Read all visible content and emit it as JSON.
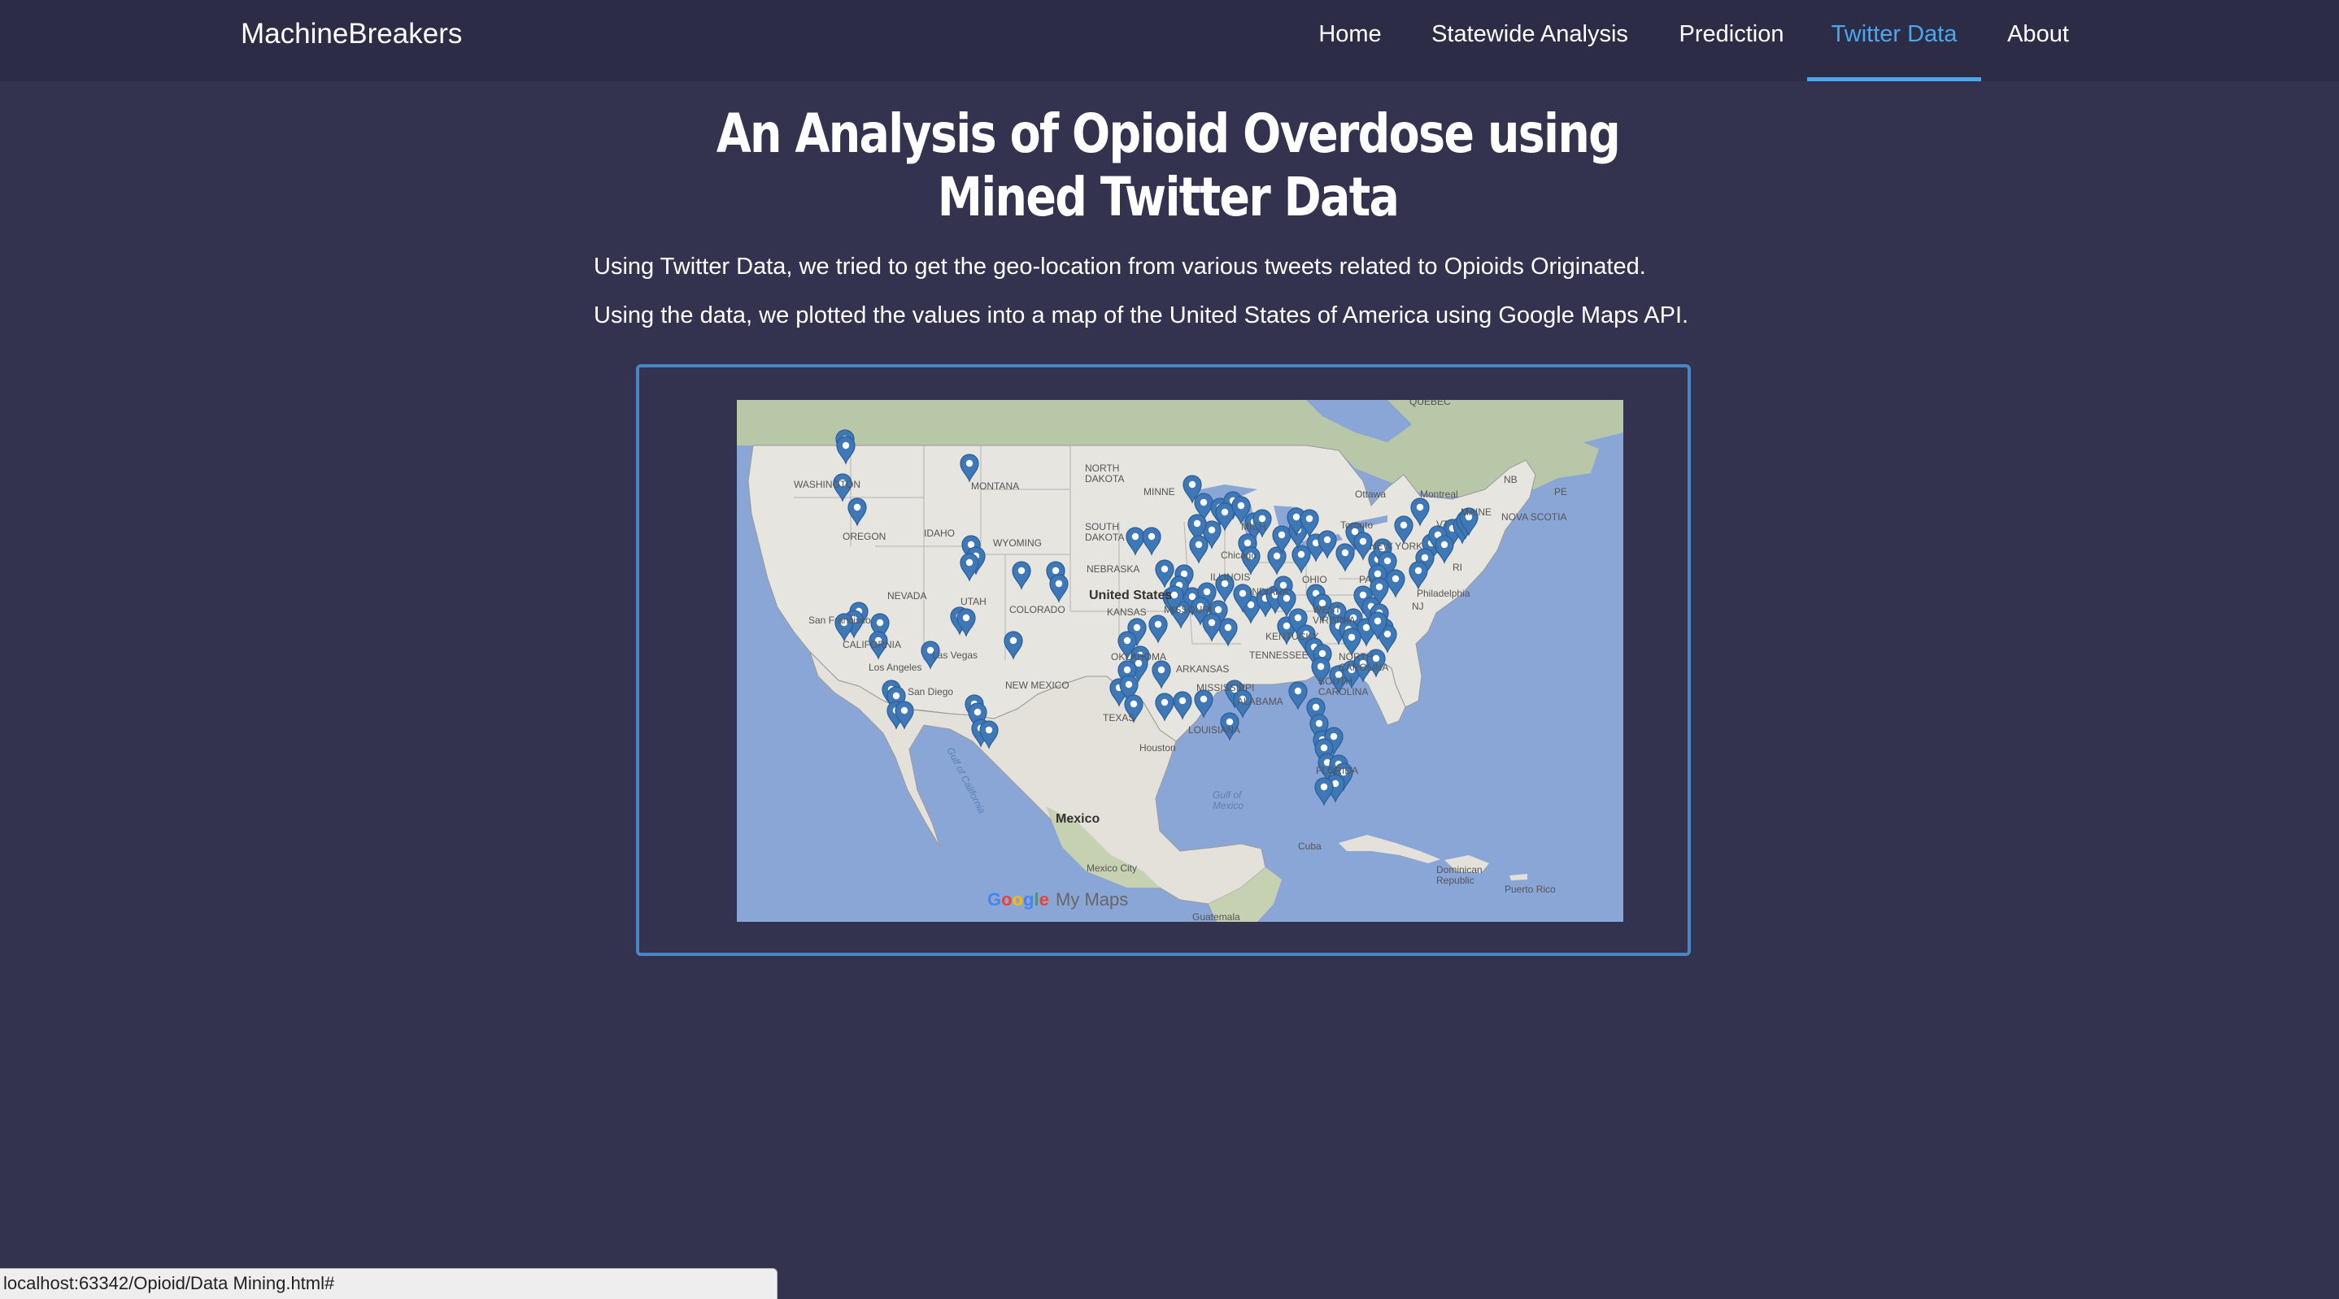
{
  "brand": "MachineBreakers",
  "nav": {
    "items": [
      {
        "label": "Home"
      },
      {
        "label": "Statewide Analysis"
      },
      {
        "label": "Prediction"
      },
      {
        "label": "Twitter Data"
      },
      {
        "label": "About"
      }
    ],
    "active": "Twitter Data",
    "active_color": "#4aa7ee"
  },
  "main": {
    "title": "An Analysis of Opioid Overdose using Mined Twitter Data",
    "paragraphs": [
      "Using Twitter Data, we tried to get the geo-location from various tweets related to Opioids Originated.",
      "Using the data, we plotted the values into a map of the United States of America using Google Maps API."
    ]
  },
  "map": {
    "attribution_google": "Google",
    "attribution_product": "My Maps",
    "marker_color": "#3f78b7",
    "frame_color": "#4a86c6",
    "labels": {
      "quebec": "QUÉBEC",
      "north_dakota": "NORTH\nDAKOTA",
      "south_dakota": "SOUTH\nDAKOTA",
      "montana": "MONTANA",
      "washington": "WASHINGTON",
      "oregon": "OREGON",
      "idaho": "IDAHO",
      "wyoming": "WYOMING",
      "nevada": "NEVADA",
      "utah": "UTAH",
      "colorado": "COLORADO",
      "california": "CALIFORNIA",
      "nebraska": "NEBRASKA",
      "kansas": "KANSAS",
      "missouri": "MISSOURI",
      "oklahoma": "OKLAHOMA",
      "arkansas": "ARKANSAS",
      "mississippi": "MISSISSIPPI",
      "louisiana": "LOUISIANA",
      "texas": "TEXAS",
      "new_mexico": "NEW MEXICO",
      "minnesota": "MINNE",
      "illinois": "ILLINOIS",
      "indiana": "INDIANA",
      "michigan": "MICH",
      "new_york": "NEW YORK",
      "pennsylvania": "PA",
      "maine": "MAINE",
      "nova_scotia": "NOVA SCOTIA",
      "nb": "NB",
      "pe": "PE",
      "ohio": "OHIO",
      "kentucky": "KENTUCKY",
      "tennessee": "TENNESSEE",
      "south_carolina": "SOUTH\nCAROLINA",
      "north_carolina": "NORTH\nCAROLINA",
      "alabama": "ALABAMA",
      "florida": "FLORIDA",
      "united_states": "United States",
      "mexico": "Mexico",
      "cuba": "Cuba",
      "dominican_republic": "Dominican\nRepublic",
      "puerto_rico": "Puerto Rico",
      "gulf_of_mexico": "Gulf of\nMexico",
      "gulf_of_california": "Gulf of California",
      "mexico_city": "Mexico City",
      "guatemala": "Guatemala",
      "ottawa": "Ottawa",
      "montreal": "Montreal",
      "toronto": "Toronto",
      "chicago": "Chicago",
      "philadelphia": "Philadelphia",
      "houston": "Houston",
      "las_vegas": "Las Vegas",
      "san_francisco": "San Francisco",
      "los_angeles": "Los Angeles",
      "san_diego": "San Diego",
      "vt": "VT",
      "nj": "NJ",
      "ri": "RI",
      "wv": "WEST\nVIRGINIA"
    }
  },
  "status_bar": {
    "url": "localhost:63342/Opioid/Data Mining.html#"
  }
}
